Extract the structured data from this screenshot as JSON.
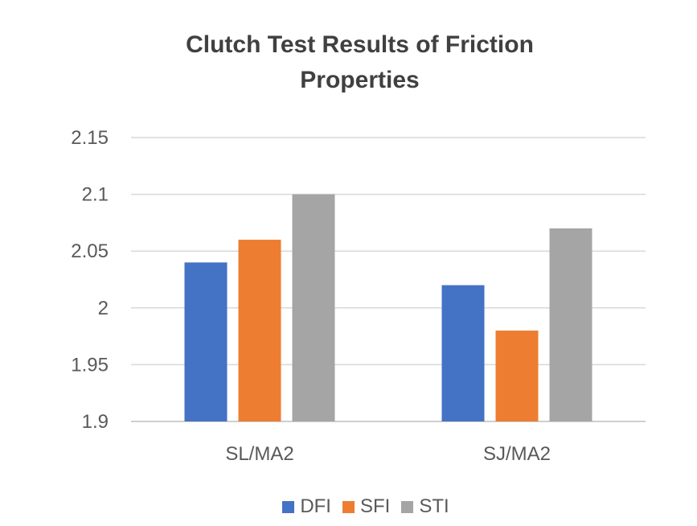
{
  "chart_data": {
    "type": "bar",
    "title_lines": [
      "Clutch Test Results of Friction",
      "Properties"
    ],
    "categories": [
      "SL/MA2",
      "SJ/MA2"
    ],
    "series": [
      {
        "name": "DFI",
        "color": "#4472C4",
        "values": [
          2.04,
          2.02
        ]
      },
      {
        "name": "SFI",
        "color": "#ED7D31",
        "values": [
          2.06,
          1.98
        ]
      },
      {
        "name": "STI",
        "color": "#A5A5A5",
        "values": [
          2.1,
          2.07
        ]
      }
    ],
    "ylim": [
      1.9,
      2.15
    ],
    "yticks": [
      "1.9",
      "1.95",
      "2",
      "2.05",
      "2.1",
      "2.15"
    ],
    "ytick_values": [
      1.9,
      1.95,
      2.0,
      2.05,
      2.1,
      2.15
    ],
    "grid": true,
    "legend_position": "bottom"
  }
}
